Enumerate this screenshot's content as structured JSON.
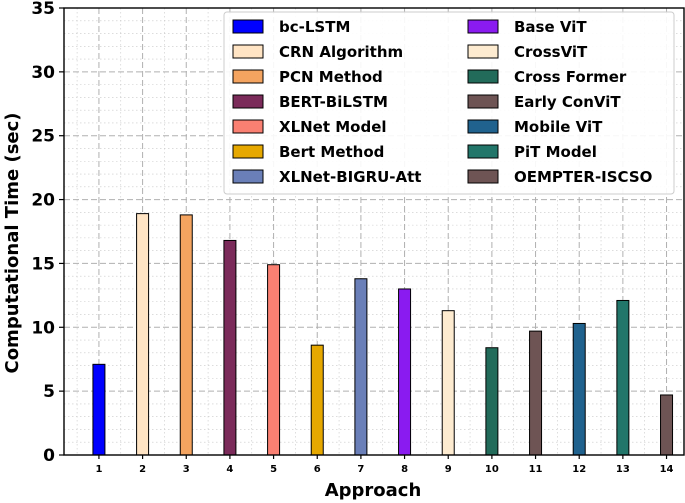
{
  "chart_data": {
    "type": "bar",
    "xlabel": "Approach",
    "ylabel": "Computational Time (sec)",
    "ylim": [
      0,
      35
    ],
    "yticks": [
      0,
      5,
      10,
      15,
      20,
      25,
      30,
      35
    ],
    "grid": true,
    "legend_position": "top-right",
    "legend_columns": 2,
    "categories": [
      "1",
      "2",
      "3",
      "4",
      "5",
      "6",
      "7",
      "8",
      "9",
      "10",
      "11",
      "12",
      "13",
      "14"
    ],
    "series": [
      {
        "name": "bc-LSTM",
        "category": "1",
        "value": 7.1,
        "color": "#0000ff"
      },
      {
        "name": "CRN Algorithm",
        "category": "2",
        "value": 18.9,
        "color": "#ffe4c4"
      },
      {
        "name": "PCN Method",
        "category": "3",
        "value": 18.8,
        "color": "#f4a460"
      },
      {
        "name": "BERT-BiLSTM",
        "category": "4",
        "value": 16.8,
        "color": "#7b2b5a"
      },
      {
        "name": "XLNet Model",
        "category": "5",
        "value": 14.9,
        "color": "#fa8072"
      },
      {
        "name": "Bert Method",
        "category": "6",
        "value": 8.6,
        "color": "#e6a800"
      },
      {
        "name": "XLNet-BIGRU-Att",
        "category": "7",
        "value": 13.8,
        "color": "#6a7fb8"
      },
      {
        "name": "Base ViT",
        "category": "8",
        "value": 13.0,
        "color": "#8a1bf0"
      },
      {
        "name": "CrossViT",
        "category": "9",
        "value": 11.3,
        "color": "#fdebd0"
      },
      {
        "name": "Cross Former",
        "category": "10",
        "value": 8.4,
        "color": "#226b5a"
      },
      {
        "name": "Early ConViT",
        "category": "11",
        "value": 9.7,
        "color": "#6e5454"
      },
      {
        "name": "Mobile ViT",
        "category": "12",
        "value": 10.3,
        "color": "#20628e"
      },
      {
        "name": "PiT Model",
        "category": "13",
        "value": 12.1,
        "color": "#22766a"
      },
      {
        "name": "OEMPTER-ISCSO",
        "category": "14",
        "value": 4.7,
        "color": "#6e5454"
      }
    ]
  }
}
